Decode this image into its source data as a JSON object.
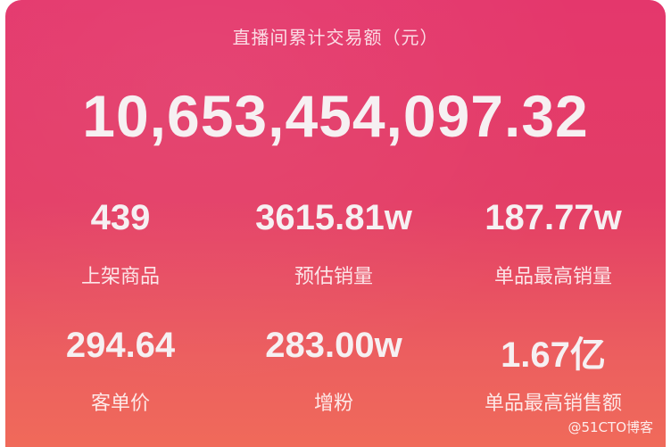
{
  "header": {
    "title": "直播间累计交易额（元）",
    "total": "10,653,454,097.32"
  },
  "stats": [
    {
      "value": "439",
      "label": "上架商品"
    },
    {
      "value": "3615.81w",
      "label": "预估销量"
    },
    {
      "value": "187.77w",
      "label": "单品最高销量"
    },
    {
      "value": "294.64",
      "label": "客单价"
    },
    {
      "value": "283.00w",
      "label": "增粉"
    },
    {
      "value": "1.67亿",
      "label": "单品最高销售额"
    }
  ],
  "watermark": "@51CTO博客",
  "colors": {
    "background_top": "#e4376c",
    "background_bottom": "#f06a5a",
    "text": "#f6f0f2"
  }
}
